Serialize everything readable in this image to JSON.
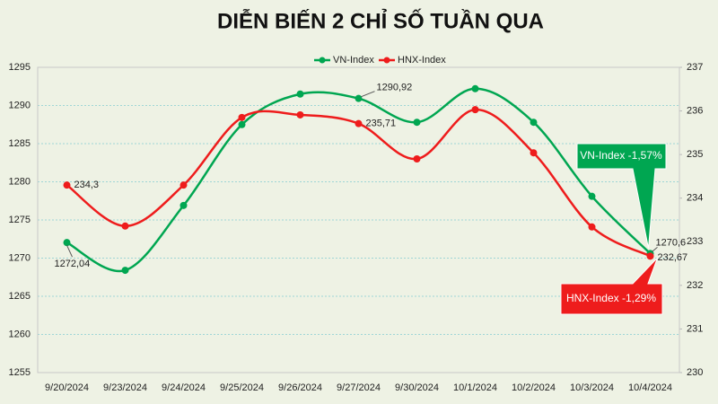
{
  "chart_data": {
    "type": "line",
    "title": "DIỄN BIẾN 2 CHỈ SỐ TUẦN QUA",
    "categories": [
      "9/20/2024",
      "9/23/2024",
      "9/24/2024",
      "9/25/2024",
      "9/26/2024",
      "9/27/2024",
      "9/30/2024",
      "10/1/2024",
      "10/2/2024",
      "10/3/2024",
      "10/4/2024"
    ],
    "series": [
      {
        "name": "VN-Index",
        "color": "#00a651",
        "values": [
          1272.04,
          1268.4,
          1276.9,
          1287.5,
          1291.5,
          1290.92,
          1287.8,
          1292.2,
          1287.8,
          1278.1,
          1270.6
        ],
        "value_labels": [
          "1272,04",
          null,
          null,
          null,
          null,
          "1290,92",
          null,
          null,
          null,
          null,
          "1270,6"
        ]
      },
      {
        "name": "HNX-Index",
        "color": "#ee1c1c",
        "axis": "y2",
        "values": [
          234.3,
          233.36,
          234.3,
          235.85,
          235.91,
          235.71,
          234.9,
          236.03,
          235.04,
          233.34,
          232.67
        ],
        "value_labels": [
          "234,3",
          null,
          null,
          null,
          null,
          "235,71",
          null,
          null,
          null,
          null,
          "232,67"
        ]
      }
    ],
    "ylim": [
      1255,
      1295
    ],
    "yticks": [
      1255,
      1260,
      1265,
      1270,
      1275,
      1280,
      1285,
      1290,
      1295
    ],
    "y2lim": [
      230,
      237
    ],
    "y2ticks": [
      230,
      231,
      232,
      233,
      234,
      235,
      236,
      237
    ],
    "grid": true,
    "smooth": true,
    "legend": "top",
    "annotations": [
      {
        "text": "VN-Index -1,57%",
        "color": "#00a651",
        "series": 0
      },
      {
        "text": "HNX-Index -1,29%",
        "color": "#ee1c1c",
        "series": 1
      }
    ]
  }
}
